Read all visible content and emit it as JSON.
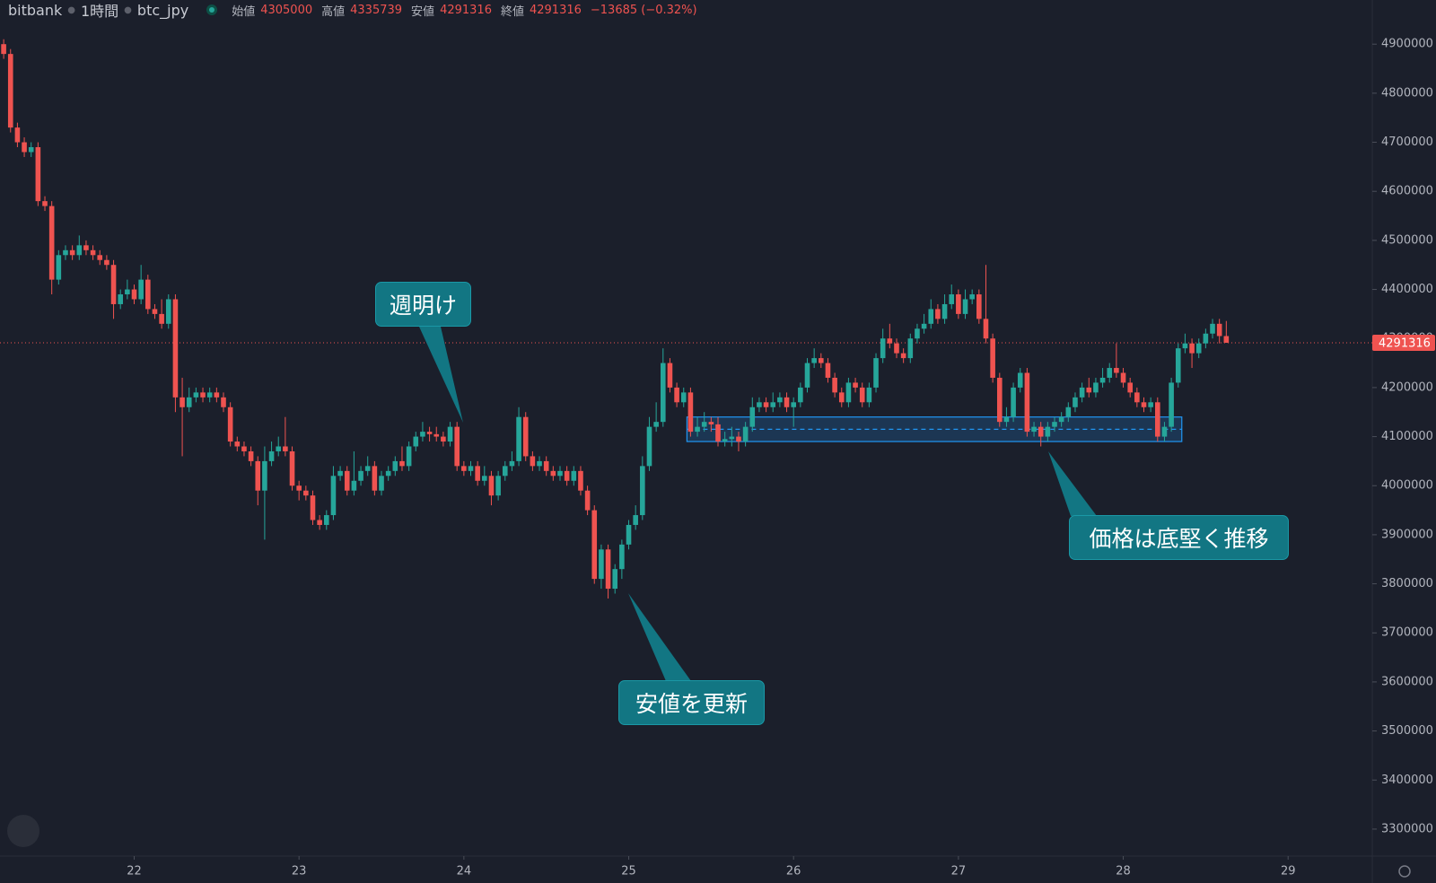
{
  "chart_data": {
    "type": "candlestick",
    "header": {
      "exchange": "bitbank",
      "interval": "1時間",
      "symbol": "btc_jpy",
      "open_label": "始値",
      "high_label": "高値",
      "low_label": "安値",
      "close_label": "終値",
      "change": "−13685 (−0.32%)"
    },
    "categories": [
      null,
      null,
      null,
      null,
      null,
      null,
      null,
      null,
      null,
      null,
      null,
      null,
      null,
      null,
      null,
      null,
      null,
      null,
      null,
      "22",
      null,
      null,
      null,
      null,
      null,
      null,
      null,
      null,
      null,
      null,
      null,
      null,
      null,
      null,
      null,
      null,
      null,
      null,
      null,
      null,
      null,
      null,
      null,
      "23",
      null,
      null,
      null,
      null,
      null,
      null,
      null,
      null,
      null,
      null,
      null,
      null,
      null,
      null,
      null,
      null,
      null,
      null,
      null,
      null,
      null,
      null,
      null,
      "24",
      null,
      null,
      null,
      null,
      null,
      null,
      null,
      null,
      null,
      null,
      null,
      null,
      null,
      null,
      null,
      null,
      null,
      null,
      null,
      null,
      null,
      null,
      null,
      "25",
      null,
      null,
      null,
      null,
      null,
      null,
      null,
      null,
      null,
      null,
      null,
      null,
      null,
      null,
      null,
      null,
      null,
      null,
      null,
      null,
      null,
      null,
      null,
      "26",
      null,
      null,
      null,
      null,
      null,
      null,
      null,
      null,
      null,
      null,
      null,
      null,
      null,
      null,
      null,
      null,
      null,
      null,
      null,
      null,
      null,
      null,
      null,
      "27",
      null,
      null,
      null,
      null,
      null,
      null,
      null,
      null,
      null,
      null,
      null,
      null,
      null,
      null,
      null,
      null,
      null,
      null,
      null,
      null,
      null,
      null,
      null,
      "28",
      null,
      null,
      null,
      null,
      null,
      null,
      null,
      null,
      null,
      null,
      null,
      null,
      null,
      null,
      null,
      null,
      null,
      null,
      null,
      null,
      null,
      null,
      null,
      "29"
    ],
    "open": [
      4900000,
      4880000,
      4730000,
      4700000,
      4680000,
      4690000,
      4580000,
      4570000,
      4420000,
      4470000,
      4480000,
      4470000,
      4490000,
      4480000,
      4470000,
      4460000,
      4450000,
      4370000,
      4390000,
      4400000,
      4380000,
      4420000,
      4360000,
      4350000,
      4330000,
      4380000,
      4180000,
      4160000,
      4180000,
      4190000,
      4180000,
      4190000,
      4180000,
      4160000,
      4090000,
      4080000,
      4070000,
      4050000,
      3990000,
      4050000,
      4070000,
      4080000,
      4070000,
      4000000,
      3990000,
      3980000,
      3930000,
      3920000,
      3940000,
      4020000,
      4030000,
      3990000,
      4010000,
      4030000,
      4040000,
      3990000,
      4020000,
      4030000,
      4050000,
      4040000,
      4080000,
      4100000,
      4110000,
      4105000,
      4100000,
      4090000,
      4120000,
      4040000,
      4030000,
      4040000,
      4010000,
      4020000,
      3980000,
      4020000,
      4040000,
      4050000,
      4140000,
      4060000,
      4040000,
      4050000,
      4030000,
      4020000,
      4030000,
      4010000,
      4030000,
      3990000,
      3950000,
      3810000,
      3870000,
      3790000,
      3830000,
      3880000,
      3920000,
      3940000,
      4040000,
      4120000,
      4130000,
      4250000,
      4200000,
      4170000,
      4190000,
      4110000,
      4120000,
      4130000,
      4125000,
      4090000,
      4095000,
      4100000,
      4090000,
      4120000,
      4160000,
      4170000,
      4160000,
      4170000,
      4180000,
      4160000,
      4170000,
      4200000,
      4250000,
      4260000,
      4250000,
      4220000,
      4190000,
      4170000,
      4210000,
      4200000,
      4170000,
      4200000,
      4260000,
      4300000,
      4290000,
      4270000,
      4260000,
      4300000,
      4320000,
      4330000,
      4360000,
      4340000,
      4370000,
      4390000,
      4350000,
      4380000,
      4390000,
      4340000,
      4300000,
      4220000,
      4130000,
      4140000,
      4200000,
      4230000,
      4110000,
      4120000,
      4100000,
      4120000,
      4130000,
      4140000,
      4160000,
      4180000,
      4200000,
      4190000,
      4210000,
      4220000,
      4240000,
      4230000,
      4210000,
      4190000,
      4170000,
      4160000,
      4170000,
      4100000,
      4120000,
      4210000,
      4280000,
      4290000,
      4270000,
      4290000,
      4310000,
      4330000,
      4305000,
      null,
      null,
      null,
      null,
      null,
      null,
      null,
      null,
      null
    ],
    "high": [
      4910000,
      4890000,
      4740000,
      4710000,
      4700000,
      4700000,
      4590000,
      4580000,
      4480000,
      4490000,
      4490000,
      4510000,
      4500000,
      4490000,
      4480000,
      4470000,
      4460000,
      4400000,
      4420000,
      4410000,
      4450000,
      4430000,
      4370000,
      4380000,
      4390000,
      4390000,
      4220000,
      4200000,
      4200000,
      4200000,
      4200000,
      4200000,
      4190000,
      4170000,
      4100000,
      4090000,
      4080000,
      4060000,
      4080000,
      4090000,
      4100000,
      4140000,
      4080000,
      4010000,
      4000000,
      3990000,
      3940000,
      3950000,
      4040000,
      4040000,
      4040000,
      4070000,
      4040000,
      4060000,
      4050000,
      4030000,
      4040000,
      4060000,
      4080000,
      4090000,
      4110000,
      4130000,
      4120000,
      4120000,
      4110000,
      4130000,
      4130000,
      4050000,
      4050000,
      4050000,
      4040000,
      4030000,
      4030000,
      4050000,
      4070000,
      4160000,
      4150000,
      4070000,
      4060000,
      4060000,
      4040000,
      4040000,
      4040000,
      4040000,
      4040000,
      4000000,
      3960000,
      3880000,
      3880000,
      3840000,
      3890000,
      3930000,
      3960000,
      4060000,
      4140000,
      4170000,
      4280000,
      4260000,
      4210000,
      4200000,
      4200000,
      4140000,
      4150000,
      4140000,
      4140000,
      4110000,
      4120000,
      4110000,
      4130000,
      4180000,
      4180000,
      4180000,
      4190000,
      4190000,
      4190000,
      4180000,
      4210000,
      4260000,
      4280000,
      4270000,
      4260000,
      4230000,
      4200000,
      4220000,
      4220000,
      4210000,
      4210000,
      4270000,
      4320000,
      4330000,
      4300000,
      4280000,
      4310000,
      4330000,
      4350000,
      4380000,
      4370000,
      4390000,
      4410000,
      4400000,
      4400000,
      4400000,
      4400000,
      4450000,
      4310000,
      4230000,
      4160000,
      4210000,
      4240000,
      4240000,
      4130000,
      4130000,
      4130000,
      4140000,
      4150000,
      4170000,
      4190000,
      4210000,
      4220000,
      4220000,
      4240000,
      4250000,
      4290000,
      4240000,
      4220000,
      4200000,
      4180000,
      4180000,
      4180000,
      4130000,
      4220000,
      4290000,
      4310000,
      4300000,
      4300000,
      4320000,
      4340000,
      4340000,
      4335739,
      null,
      null,
      null,
      null,
      null,
      null,
      null,
      null,
      null
    ],
    "low": [
      4870000,
      4720000,
      4690000,
      4670000,
      4670000,
      4570000,
      4560000,
      4390000,
      4410000,
      4460000,
      4460000,
      4460000,
      4470000,
      4460000,
      4450000,
      4440000,
      4340000,
      4360000,
      4380000,
      4370000,
      4370000,
      4350000,
      4340000,
      4320000,
      4320000,
      4150000,
      4060000,
      4150000,
      4170000,
      4170000,
      4170000,
      4170000,
      4150000,
      4080000,
      4070000,
      4060000,
      4040000,
      3960000,
      3890000,
      4040000,
      4060000,
      4060000,
      3990000,
      3970000,
      3970000,
      3920000,
      3910000,
      3910000,
      3930000,
      4010000,
      3980000,
      3980000,
      4000000,
      4020000,
      3980000,
      3980000,
      4010000,
      4020000,
      4030000,
      4030000,
      4070000,
      4090000,
      4090000,
      4090000,
      4080000,
      4080000,
      4030000,
      4020000,
      4020000,
      4000000,
      4000000,
      3960000,
      3970000,
      4010000,
      4030000,
      4040000,
      4050000,
      4030000,
      4030000,
      4020000,
      4010000,
      4010000,
      4000000,
      4000000,
      3980000,
      3940000,
      3800000,
      3790000,
      3770000,
      3780000,
      3810000,
      3870000,
      3910000,
      3930000,
      4030000,
      4110000,
      4120000,
      4190000,
      4160000,
      4160000,
      4100000,
      4100000,
      4110000,
      4110000,
      4080000,
      4080000,
      4080000,
      4070000,
      4080000,
      4110000,
      4150000,
      4150000,
      4150000,
      4160000,
      4150000,
      4120000,
      4160000,
      4190000,
      4240000,
      4240000,
      4210000,
      4180000,
      4160000,
      4160000,
      4190000,
      4160000,
      4160000,
      4190000,
      4250000,
      4280000,
      4260000,
      4250000,
      4250000,
      4290000,
      4310000,
      4320000,
      4330000,
      4330000,
      4360000,
      4340000,
      4340000,
      4370000,
      4330000,
      4290000,
      4210000,
      4120000,
      4120000,
      4130000,
      4190000,
      4100000,
      4100000,
      4080000,
      4090000,
      4110000,
      4120000,
      4130000,
      4150000,
      4170000,
      4180000,
      4180000,
      4200000,
      4210000,
      4220000,
      4200000,
      4180000,
      4160000,
      4150000,
      4150000,
      4090000,
      4090000,
      4110000,
      4200000,
      4270000,
      4240000,
      4260000,
      4280000,
      4300000,
      4290000,
      4291316,
      null,
      null,
      null,
      null,
      null,
      null,
      null,
      null,
      null
    ],
    "close": [
      4880000,
      4730000,
      4700000,
      4680000,
      4690000,
      4580000,
      4570000,
      4420000,
      4470000,
      4480000,
      4470000,
      4490000,
      4480000,
      4470000,
      4460000,
      4450000,
      4370000,
      4390000,
      4400000,
      4380000,
      4420000,
      4360000,
      4350000,
      4330000,
      4380000,
      4180000,
      4160000,
      4180000,
      4190000,
      4180000,
      4190000,
      4180000,
      4160000,
      4090000,
      4080000,
      4070000,
      4050000,
      3990000,
      4050000,
      4070000,
      4080000,
      4070000,
      4000000,
      3990000,
      3980000,
      3930000,
      3920000,
      3940000,
      4020000,
      4030000,
      3990000,
      4010000,
      4030000,
      4040000,
      3990000,
      4020000,
      4030000,
      4050000,
      4040000,
      4080000,
      4100000,
      4110000,
      4105000,
      4100000,
      4090000,
      4120000,
      4040000,
      4030000,
      4040000,
      4010000,
      4020000,
      3980000,
      4020000,
      4040000,
      4050000,
      4140000,
      4060000,
      4040000,
      4050000,
      4030000,
      4020000,
      4030000,
      4010000,
      4030000,
      3990000,
      3950000,
      3810000,
      3870000,
      3790000,
      3830000,
      3880000,
      3920000,
      3940000,
      4040000,
      4120000,
      4130000,
      4250000,
      4200000,
      4170000,
      4190000,
      4110000,
      4120000,
      4130000,
      4125000,
      4090000,
      4095000,
      4100000,
      4090000,
      4120000,
      4160000,
      4170000,
      4160000,
      4170000,
      4180000,
      4160000,
      4170000,
      4200000,
      4250000,
      4260000,
      4250000,
      4220000,
      4190000,
      4170000,
      4210000,
      4200000,
      4170000,
      4200000,
      4260000,
      4300000,
      4290000,
      4270000,
      4260000,
      4300000,
      4320000,
      4330000,
      4360000,
      4340000,
      4370000,
      4390000,
      4350000,
      4380000,
      4390000,
      4340000,
      4300000,
      4220000,
      4130000,
      4140000,
      4200000,
      4230000,
      4110000,
      4120000,
      4100000,
      4120000,
      4130000,
      4140000,
      4160000,
      4180000,
      4200000,
      4190000,
      4210000,
      4220000,
      4240000,
      4230000,
      4210000,
      4190000,
      4170000,
      4160000,
      4170000,
      4100000,
      4120000,
      4210000,
      4280000,
      4290000,
      4270000,
      4290000,
      4310000,
      4330000,
      4305000,
      4291316,
      null,
      null,
      null,
      null,
      null,
      null,
      null,
      null,
      null
    ],
    "up_color": "#26a69a",
    "down_color": "#ef5350",
    "ylim": [
      3245000,
      4990000
    ],
    "yticks": [
      3300000,
      3400000,
      3500000,
      3600000,
      3700000,
      3800000,
      3900000,
      4000000,
      4100000,
      4200000,
      4300000,
      4400000,
      4500000,
      4600000,
      4700000,
      4800000,
      4900000
    ],
    "grid": false,
    "zone": {
      "high": 4140000,
      "low": 4090000,
      "color": "#2196f3"
    },
    "annotations": [
      {
        "text": "週明け"
      },
      {
        "text": "安値を更新"
      },
      {
        "text": "価格は底堅く推移"
      }
    ]
  }
}
